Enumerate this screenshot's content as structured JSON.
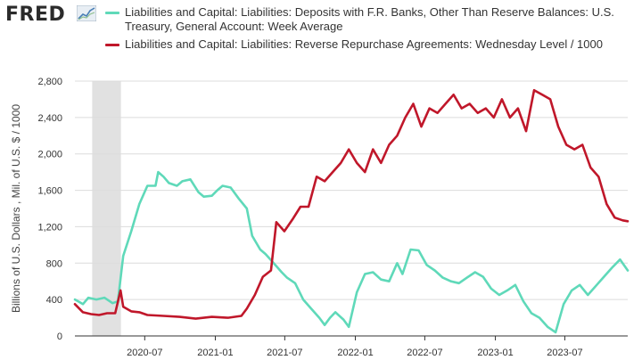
{
  "header": {
    "logo_text": "FRED",
    "logo_icon": "line-chart-icon"
  },
  "legend": [
    {
      "label": "Liabilities and Capital: Liabilities: Deposits with F.R. Banks, Other Than Reserve Balances: U.S. Treasury, General Account: Week Average",
      "color": "#5fd9b9"
    },
    {
      "label": "Liabilities and Capital: Liabilities: Reverse Repurchase Agreements: Wednesday Level / 1000",
      "color": "#c0172a"
    }
  ],
  "chart_data": {
    "type": "line",
    "title": "",
    "xlabel": "",
    "ylabel": "Billions of U.S. Dollars , Mil. of U.S. $ / 1000",
    "xlim": [
      "2020-01-01",
      "2023-12-12"
    ],
    "ylim": [
      0,
      2800
    ],
    "yticks": [
      0,
      400,
      800,
      1200,
      1600,
      2000,
      2400,
      2800
    ],
    "ytick_labels": [
      "0",
      "400",
      "800",
      "1,200",
      "1,600",
      "2,000",
      "2,400",
      "2,800"
    ],
    "xticks": [
      "2020-07-01",
      "2021-01-01",
      "2021-07-01",
      "2022-01-01",
      "2022-07-01",
      "2023-01-01",
      "2023-07-01"
    ],
    "xtick_labels": [
      "2020-07",
      "2021-01",
      "2021-07",
      "2022-01",
      "2022-07",
      "2023-01",
      "2023-07"
    ],
    "grid": true,
    "recession_band": [
      "2020-02-15",
      "2020-04-30"
    ],
    "series": [
      {
        "name": "Liabilities and Capital: Liabilities: Deposits with F.R. Banks, Other Than Reserve Balances: U.S. Treasury, General Account: Week Average",
        "color": "#5fd9b9",
        "points": [
          [
            "2020-01-01",
            400
          ],
          [
            "2020-01-22",
            350
          ],
          [
            "2020-02-05",
            420
          ],
          [
            "2020-02-26",
            400
          ],
          [
            "2020-03-18",
            420
          ],
          [
            "2020-04-08",
            360
          ],
          [
            "2020-04-22",
            380
          ],
          [
            "2020-05-06",
            880
          ],
          [
            "2020-05-27",
            1150
          ],
          [
            "2020-06-17",
            1450
          ],
          [
            "2020-07-08",
            1650
          ],
          [
            "2020-07-29",
            1650
          ],
          [
            "2020-08-05",
            1800
          ],
          [
            "2020-08-19",
            1750
          ],
          [
            "2020-09-02",
            1680
          ],
          [
            "2020-09-23",
            1650
          ],
          [
            "2020-10-07",
            1700
          ],
          [
            "2020-10-28",
            1720
          ],
          [
            "2020-11-18",
            1580
          ],
          [
            "2020-12-02",
            1530
          ],
          [
            "2020-12-23",
            1540
          ],
          [
            "2021-01-06",
            1600
          ],
          [
            "2021-01-20",
            1650
          ],
          [
            "2021-02-10",
            1630
          ],
          [
            "2021-03-03",
            1510
          ],
          [
            "2021-03-24",
            1400
          ],
          [
            "2021-04-07",
            1100
          ],
          [
            "2021-04-28",
            950
          ],
          [
            "2021-05-12",
            900
          ],
          [
            "2021-06-02",
            800
          ],
          [
            "2021-06-23",
            700
          ],
          [
            "2021-07-07",
            640
          ],
          [
            "2021-07-28",
            580
          ],
          [
            "2021-08-18",
            400
          ],
          [
            "2021-09-08",
            300
          ],
          [
            "2021-09-29",
            200
          ],
          [
            "2021-10-13",
            120
          ],
          [
            "2021-10-27",
            200
          ],
          [
            "2021-11-10",
            260
          ],
          [
            "2021-12-01",
            180
          ],
          [
            "2021-12-15",
            100
          ],
          [
            "2022-01-05",
            480
          ],
          [
            "2022-01-26",
            680
          ],
          [
            "2022-02-16",
            700
          ],
          [
            "2022-03-09",
            620
          ],
          [
            "2022-03-30",
            600
          ],
          [
            "2022-04-20",
            800
          ],
          [
            "2022-05-04",
            680
          ],
          [
            "2022-05-25",
            950
          ],
          [
            "2022-06-15",
            940
          ],
          [
            "2022-07-06",
            780
          ],
          [
            "2022-07-27",
            720
          ],
          [
            "2022-08-17",
            640
          ],
          [
            "2022-09-07",
            600
          ],
          [
            "2022-09-28",
            580
          ],
          [
            "2022-10-19",
            640
          ],
          [
            "2022-11-09",
            700
          ],
          [
            "2022-11-30",
            650
          ],
          [
            "2022-12-21",
            520
          ],
          [
            "2023-01-11",
            450
          ],
          [
            "2023-02-01",
            500
          ],
          [
            "2023-02-22",
            560
          ],
          [
            "2023-03-15",
            380
          ],
          [
            "2023-04-05",
            250
          ],
          [
            "2023-04-26",
            200
          ],
          [
            "2023-05-17",
            100
          ],
          [
            "2023-06-07",
            40
          ],
          [
            "2023-06-28",
            350
          ],
          [
            "2023-07-19",
            500
          ],
          [
            "2023-08-09",
            560
          ],
          [
            "2023-08-30",
            450
          ],
          [
            "2023-09-20",
            550
          ],
          [
            "2023-10-11",
            650
          ],
          [
            "2023-11-01",
            750
          ],
          [
            "2023-11-22",
            840
          ],
          [
            "2023-12-12",
            720
          ]
        ]
      },
      {
        "name": "Liabilities and Capital: Liabilities: Reverse Repurchase Agreements: Wednesday Level / 1000",
        "color": "#c0172a",
        "points": [
          [
            "2020-01-01",
            350
          ],
          [
            "2020-01-22",
            260
          ],
          [
            "2020-02-12",
            240
          ],
          [
            "2020-03-04",
            230
          ],
          [
            "2020-03-25",
            250
          ],
          [
            "2020-04-15",
            250
          ],
          [
            "2020-04-29",
            500
          ],
          [
            "2020-05-06",
            320
          ],
          [
            "2020-05-27",
            270
          ],
          [
            "2020-06-17",
            260
          ],
          [
            "2020-07-08",
            230
          ],
          [
            "2020-08-19",
            220
          ],
          [
            "2020-09-30",
            210
          ],
          [
            "2020-11-11",
            190
          ],
          [
            "2020-12-23",
            210
          ],
          [
            "2021-02-03",
            200
          ],
          [
            "2021-03-10",
            220
          ],
          [
            "2021-03-24",
            300
          ],
          [
            "2021-04-14",
            450
          ],
          [
            "2021-05-05",
            650
          ],
          [
            "2021-05-26",
            720
          ],
          [
            "2021-06-09",
            1250
          ],
          [
            "2021-06-30",
            1150
          ],
          [
            "2021-07-21",
            1280
          ],
          [
            "2021-08-11",
            1420
          ],
          [
            "2021-09-01",
            1420
          ],
          [
            "2021-09-22",
            1750
          ],
          [
            "2021-10-13",
            1700
          ],
          [
            "2021-11-03",
            1800
          ],
          [
            "2021-11-24",
            1900
          ],
          [
            "2021-12-15",
            2050
          ],
          [
            "2022-01-05",
            1900
          ],
          [
            "2022-01-26",
            1800
          ],
          [
            "2022-02-16",
            2050
          ],
          [
            "2022-03-09",
            1900
          ],
          [
            "2022-03-30",
            2100
          ],
          [
            "2022-04-20",
            2200
          ],
          [
            "2022-05-11",
            2400
          ],
          [
            "2022-06-01",
            2550
          ],
          [
            "2022-06-22",
            2300
          ],
          [
            "2022-07-13",
            2500
          ],
          [
            "2022-08-03",
            2450
          ],
          [
            "2022-08-24",
            2550
          ],
          [
            "2022-09-14",
            2650
          ],
          [
            "2022-10-05",
            2500
          ],
          [
            "2022-10-26",
            2550
          ],
          [
            "2022-11-16",
            2450
          ],
          [
            "2022-12-07",
            2500
          ],
          [
            "2022-12-28",
            2400
          ],
          [
            "2023-01-18",
            2600
          ],
          [
            "2023-02-08",
            2400
          ],
          [
            "2023-03-01",
            2500
          ],
          [
            "2023-03-22",
            2250
          ],
          [
            "2023-04-12",
            2700
          ],
          [
            "2023-05-03",
            2650
          ],
          [
            "2023-05-24",
            2600
          ],
          [
            "2023-06-14",
            2300
          ],
          [
            "2023-07-05",
            2100
          ],
          [
            "2023-07-26",
            2050
          ],
          [
            "2023-08-16",
            2100
          ],
          [
            "2023-09-06",
            1850
          ],
          [
            "2023-09-27",
            1750
          ],
          [
            "2023-10-18",
            1450
          ],
          [
            "2023-11-08",
            1300
          ],
          [
            "2023-11-29",
            1270
          ],
          [
            "2023-12-12",
            1260
          ]
        ]
      }
    ]
  }
}
